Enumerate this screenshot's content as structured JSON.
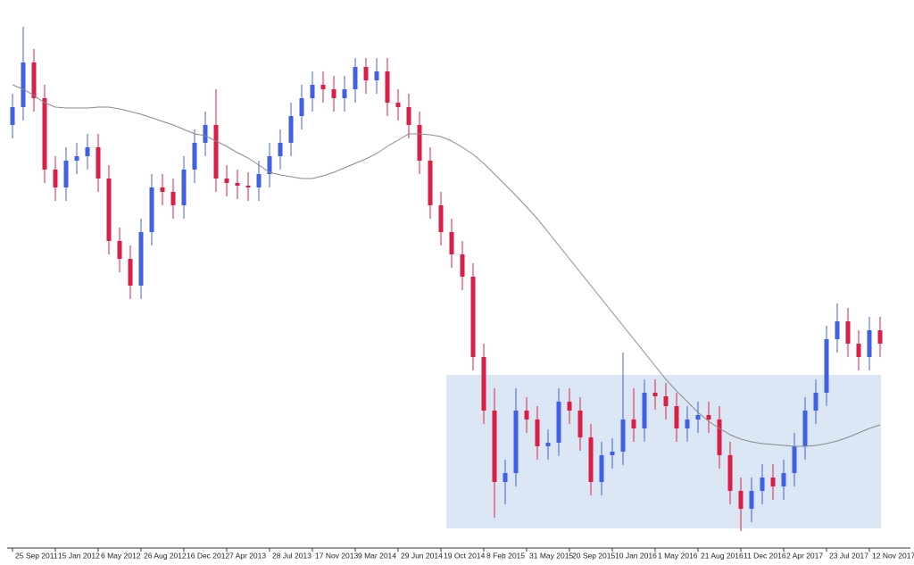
{
  "chart_data": {
    "type": "candlestick",
    "categories": [
      "25 Sep 2011",
      null,
      null,
      null,
      "15 Jan 2012",
      null,
      null,
      null,
      "6 May 2012",
      null,
      null,
      null,
      "26 Aug 2012",
      null,
      null,
      null,
      "16 Dec 2012",
      null,
      null,
      null,
      "7 Apr 2013",
      null,
      null,
      null,
      "28 Jul 2013",
      null,
      null,
      null,
      "17 Nov 2013",
      null,
      null,
      null,
      "9 Mar 2014",
      null,
      null,
      null,
      "29 Jun 2014",
      null,
      null,
      null,
      "19 Oct 2014",
      null,
      null,
      null,
      "8 Feb 2015",
      null,
      null,
      null,
      "31 May 2015",
      null,
      null,
      null,
      "20 Sep 2015",
      null,
      null,
      null,
      "10 Jan 2016",
      null,
      null,
      null,
      "1 May 2016",
      null,
      null,
      null,
      "21 Aug 2016",
      null,
      null,
      null,
      "11 Dec 2016",
      null,
      null,
      null,
      "2 Apr 2017",
      null,
      null,
      null,
      "23 Jul 2017",
      null,
      null,
      null,
      "12 Nov 2017",
      null
    ],
    "open": [
      470,
      490,
      540,
      500,
      420,
      400,
      430,
      435,
      445,
      410,
      340,
      320,
      290,
      350,
      400,
      395,
      380,
      420,
      450,
      470,
      410,
      405,
      402,
      400,
      415,
      435,
      450,
      480,
      500,
      515,
      510,
      500,
      510,
      535,
      520,
      530,
      495,
      490,
      470,
      430,
      380,
      350,
      325,
      300,
      210,
      150,
      70,
      80,
      150,
      140,
      110,
      114,
      160,
      150,
      120,
      70,
      100,
      104,
      140,
      130,
      170,
      166,
      155,
      130,
      140,
      145,
      140,
      100,
      60,
      40,
      60,
      75,
      65,
      80,
      110,
      150,
      170,
      230,
      250,
      225,
      210,
      240
    ],
    "high": [
      505,
      580,
      555,
      515,
      435,
      445,
      450,
      460,
      460,
      425,
      355,
      335,
      365,
      415,
      415,
      410,
      435,
      465,
      485,
      510,
      425,
      420,
      417,
      430,
      450,
      465,
      495,
      515,
      530,
      530,
      525,
      525,
      545,
      545,
      545,
      545,
      510,
      505,
      485,
      445,
      395,
      365,
      340,
      315,
      225,
      175,
      95,
      175,
      165,
      155,
      129,
      175,
      175,
      165,
      135,
      115,
      119,
      215,
      175,
      185,
      185,
      181,
      170,
      155,
      160,
      160,
      155,
      115,
      75,
      75,
      90,
      90,
      95,
      125,
      165,
      185,
      245,
      270,
      265,
      240,
      255,
      255
    ],
    "low": [
      455,
      475,
      485,
      405,
      385,
      385,
      415,
      420,
      395,
      325,
      305,
      275,
      275,
      335,
      380,
      365,
      365,
      405,
      435,
      395,
      390,
      387,
      385,
      385,
      400,
      420,
      435,
      465,
      485,
      495,
      485,
      485,
      495,
      505,
      505,
      480,
      475,
      455,
      415,
      365,
      335,
      310,
      285,
      195,
      135,
      30,
      45,
      65,
      125,
      95,
      95,
      99,
      135,
      105,
      55,
      55,
      85,
      89,
      115,
      115,
      151,
      140,
      115,
      115,
      125,
      125,
      85,
      45,
      15,
      25,
      45,
      50,
      50,
      65,
      95,
      135,
      155,
      215,
      210,
      195,
      195,
      210
    ],
    "close": [
      490,
      540,
      500,
      420,
      400,
      430,
      435,
      445,
      410,
      340,
      320,
      290,
      350,
      400,
      395,
      380,
      420,
      450,
      470,
      410,
      405,
      402,
      400,
      415,
      435,
      450,
      480,
      500,
      515,
      510,
      500,
      510,
      535,
      520,
      530,
      495,
      490,
      470,
      430,
      380,
      350,
      325,
      300,
      210,
      150,
      70,
      80,
      150,
      140,
      110,
      114,
      160,
      150,
      120,
      70,
      100,
      104,
      140,
      130,
      170,
      166,
      155,
      130,
      140,
      145,
      140,
      100,
      60,
      40,
      60,
      75,
      65,
      80,
      110,
      150,
      170,
      230,
      250,
      225,
      210,
      240,
      225
    ],
    "up_color": "#3f5fe6",
    "down_color": "#dc1e46",
    "moving_average": {
      "color": "#8a8a8a",
      "values": [
        515,
        510,
        503,
        495,
        490,
        489,
        489,
        489,
        490,
        490,
        488,
        485,
        482,
        478,
        474,
        470,
        465,
        460,
        458,
        452,
        446,
        439,
        433,
        425,
        417,
        414,
        412,
        410,
        410,
        413,
        417,
        422,
        427,
        432,
        438,
        446,
        453,
        460,
        460,
        459,
        457,
        452,
        445,
        437,
        427,
        415,
        403,
        391,
        378,
        365,
        350,
        335,
        320,
        305,
        290,
        275,
        260,
        245,
        230,
        215,
        200,
        185,
        172,
        160,
        148,
        138,
        130,
        123,
        118,
        115,
        113,
        112,
        111,
        110,
        110,
        111,
        113,
        116,
        120,
        125,
        130,
        134
      ]
    },
    "ylim": [
      0,
      600
    ]
  }
}
